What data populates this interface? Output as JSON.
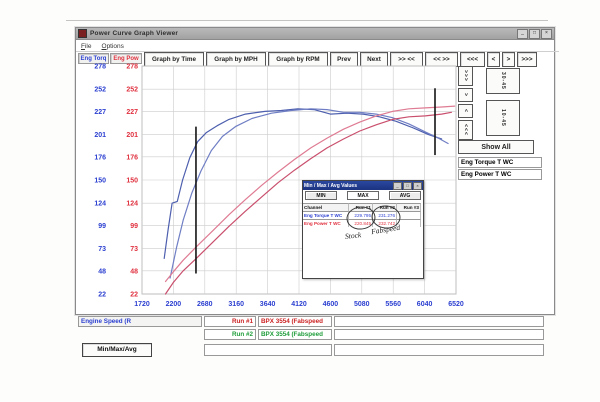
{
  "window": {
    "title": "Power Curve Graph Viewer",
    "menu": [
      "File",
      "Options"
    ],
    "titlebar_buttons": {
      "minimize": "_",
      "maximize": "□",
      "close": "×"
    },
    "toolbar": [
      "Graph by Time",
      "Graph by MPH",
      "Graph by RPM",
      "Prev",
      "Next",
      ">> <<",
      "<< >>",
      "<<<",
      "<",
      ">",
      ">>>"
    ]
  },
  "axes": {
    "torque_header": "Eng Torq",
    "power_header": "Eng Pow",
    "torque_color": "#2b3fd0",
    "power_color": "#e0313f"
  },
  "right_panel": {
    "scroll_buttons": [
      ">>>",
      ">",
      "<",
      "<<<"
    ],
    "range_buttons": [
      "30-45",
      "10-45"
    ],
    "show_all_label": "Show All",
    "legend": [
      {
        "label": "Eng Torque T WC",
        "color": "#2b3fd0"
      },
      {
        "label": "Eng Power T WC",
        "color": "#e0313f"
      }
    ]
  },
  "inset": {
    "title": "Min / Max / Avg Values",
    "buttons": [
      "MIN",
      "MAX",
      "AVG"
    ],
    "titlebar_buttons": {
      "minimize": "_",
      "maximize": "□",
      "close": "×"
    },
    "table": {
      "headers": [
        "Channel",
        "Run #1",
        "Run #2",
        "Run #3"
      ],
      "rows": [
        {
          "channel": "Eng Torque T WC",
          "color": "#2b3fd0",
          "values": [
            "229.795",
            "231.276",
            ""
          ]
        },
        {
          "channel": "Eng Power T WC",
          "color": "#e0313f",
          "values": [
            "220.845",
            "232.742",
            ""
          ]
        }
      ]
    },
    "annotations": [
      {
        "text": "Stock"
      },
      {
        "text": "Fabspeed"
      }
    ]
  },
  "bottom": {
    "speed_label": "Engine Speed (R",
    "runs": [
      {
        "run": "Run #1",
        "desc": "BPX 3554  (Fabspeed",
        "color": "#cc2222"
      },
      {
        "run": "Run #2",
        "desc": "BPX 3554  (Fabspeed",
        "color": "#1f9d3a"
      }
    ],
    "minmax_button": "Min/Max/Avg"
  },
  "chart_data": {
    "type": "line",
    "xlabel": "Engine Speed (RPM)",
    "ylabel": "Eng Torque / Eng Power",
    "xlim": [
      1720,
      6520
    ],
    "ylim": [
      22,
      278
    ],
    "x_ticks": [
      1720,
      2200,
      2680,
      3160,
      3640,
      4120,
      4600,
      5080,
      5560,
      6040,
      6520
    ],
    "y_ticks": [
      278,
      252,
      227,
      201,
      176,
      150,
      124,
      99,
      73,
      48,
      22
    ],
    "grid": true,
    "cursors": [
      {
        "rpm": 2545,
        "from": 210,
        "to": 45
      },
      {
        "rpm": 6199,
        "from": 253,
        "to": 178
      }
    ],
    "series": [
      {
        "name": "torque-run2-fabspeed",
        "color": "#4d5fae",
        "points": [
          [
            2060,
            62
          ],
          [
            2120,
            95
          ],
          [
            2180,
            124
          ],
          [
            2260,
            126
          ],
          [
            2340,
            150
          ],
          [
            2450,
            175
          ],
          [
            2570,
            193
          ],
          [
            2700,
            203
          ],
          [
            2870,
            211
          ],
          [
            3050,
            218
          ],
          [
            3300,
            224
          ],
          [
            3600,
            227
          ],
          [
            3850,
            228
          ],
          [
            4100,
            230
          ],
          [
            4350,
            229
          ],
          [
            4600,
            224
          ],
          [
            4850,
            225
          ],
          [
            5100,
            224
          ],
          [
            5350,
            221
          ],
          [
            5600,
            216
          ],
          [
            5850,
            209
          ],
          [
            6100,
            201
          ],
          [
            6300,
            196
          ]
        ]
      },
      {
        "name": "torque-run1-stock",
        "color": "#6f7ec4",
        "points": [
          [
            2150,
            40
          ],
          [
            2250,
            75
          ],
          [
            2350,
            105
          ],
          [
            2480,
            135
          ],
          [
            2620,
            160
          ],
          [
            2780,
            183
          ],
          [
            2950,
            199
          ],
          [
            3150,
            210
          ],
          [
            3400,
            219
          ],
          [
            3700,
            225
          ],
          [
            4000,
            228
          ],
          [
            4300,
            230
          ],
          [
            4550,
            229
          ],
          [
            4800,
            226
          ],
          [
            5050,
            226
          ],
          [
            5300,
            224
          ],
          [
            5550,
            220
          ],
          [
            5800,
            213
          ],
          [
            6050,
            204
          ],
          [
            6250,
            197
          ],
          [
            6400,
            191
          ]
        ]
      },
      {
        "name": "power-run2-fabspeed",
        "color": "#df7b93",
        "points": [
          [
            2080,
            36
          ],
          [
            2200,
            47
          ],
          [
            2350,
            60
          ],
          [
            2550,
            75
          ],
          [
            2800,
            93
          ],
          [
            3050,
            111
          ],
          [
            3300,
            128
          ],
          [
            3550,
            144
          ],
          [
            3800,
            159
          ],
          [
            4050,
            173
          ],
          [
            4300,
            186
          ],
          [
            4550,
            197
          ],
          [
            4800,
            207
          ],
          [
            5050,
            215
          ],
          [
            5300,
            222
          ],
          [
            5550,
            227
          ],
          [
            5800,
            230
          ],
          [
            6050,
            231
          ],
          [
            6300,
            232
          ],
          [
            6500,
            233
          ]
        ]
      },
      {
        "name": "power-run1-stock",
        "color": "#c94f6d",
        "points": [
          [
            2080,
            22
          ],
          [
            2200,
            35
          ],
          [
            2350,
            48
          ],
          [
            2550,
            62
          ],
          [
            2800,
            80
          ],
          [
            3050,
            98
          ],
          [
            3300,
            115
          ],
          [
            3550,
            131
          ],
          [
            3800,
            147
          ],
          [
            4050,
            161
          ],
          [
            4300,
            174
          ],
          [
            4550,
            186
          ],
          [
            4800,
            196
          ],
          [
            5050,
            205
          ],
          [
            5300,
            212
          ],
          [
            5550,
            218
          ],
          [
            5800,
            221
          ],
          [
            6050,
            222
          ],
          [
            6300,
            224
          ],
          [
            6450,
            226
          ]
        ]
      }
    ]
  }
}
